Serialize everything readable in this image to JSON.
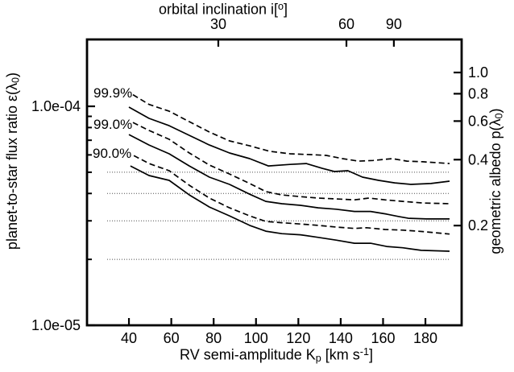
{
  "figure": {
    "background": "#ffffff",
    "line_color": "#000000",
    "reference_line_color": "#4a4a4a"
  },
  "axis_titles": {
    "top_parts": [
      "orbital inclination i[",
      "o",
      "]"
    ],
    "x_parts": [
      "RV semi-amplitude K",
      "p",
      " [km s",
      "-1",
      "]"
    ],
    "y_parts": [
      "planet-to-star flux ratio ε(λ",
      "0",
      ")"
    ],
    "y2_parts": [
      "geometric albedo p(λ",
      "0",
      ")"
    ]
  },
  "curve_labels": [
    "99.9%",
    "99.0%",
    "90.0%"
  ],
  "chart_data": {
    "type": "line",
    "title": "",
    "xlabel": "RV semi-amplitude Kp [km s-1]",
    "ylabel": "planet-to-star flux ratio epsilon(lambda0)",
    "y2label": "geometric albedo p(lambda0)",
    "top_label": "orbital inclination i[deg]",
    "grid": false,
    "legend_position": "inline-left",
    "x_axis": {
      "min": 20.2,
      "max": 197.1,
      "ticks": [
        40,
        60,
        80,
        100,
        120,
        140,
        160,
        180
      ],
      "tick_labels": [
        "40",
        "60",
        "80",
        "100",
        "120",
        "140",
        "160",
        "180"
      ]
    },
    "top_axis": {
      "note": "inclination ticks mapped to Kp = Ktrue*sin(i), Ktrue ~165 km/s",
      "ticks": [
        {
          "label": "30",
          "k": 82.2
        },
        {
          "label": "60",
          "k": 142.7
        },
        {
          "label": "90",
          "k": 165.1
        }
      ]
    },
    "y_axis": {
      "scale": "log",
      "min": 1e-05,
      "max": 0.000202,
      "major_ticks": [
        {
          "label": "1.0e-04",
          "v": 0.0001
        },
        {
          "label": "1.0e-05",
          "v": 1e-05
        }
      ],
      "minor_ticks": [
        2e-05,
        3e-05,
        4e-05,
        5e-05,
        6e-05,
        7e-05,
        8e-05,
        9e-05
      ]
    },
    "y2_axis": {
      "scale_to_flux": 0.0001427,
      "ticks": [
        {
          "label": "1.0",
          "p": 1.0
        },
        {
          "label": "0.8",
          "p": 0.8
        },
        {
          "label": "0.6",
          "p": 0.6
        },
        {
          "label": "0.4",
          "p": 0.4
        },
        {
          "label": "0.2",
          "p": 0.2
        }
      ]
    },
    "reference_lines": {
      "style": "dotted",
      "k_start": 29.7,
      "k_end": 191.4,
      "values": [
        5e-05,
        4e-05,
        3e-05,
        2e-05
      ]
    },
    "annotations": [
      {
        "text": "99.9%",
        "k": 23.5,
        "v": 0.000114
      },
      {
        "text": "99.0%",
        "k": 23.5,
        "v": 8.2e-05
      },
      {
        "text": "90.0%",
        "k": 23.2,
        "v": 6e-05
      }
    ],
    "series": [
      {
        "name": "99.9-dashed",
        "style": "dashed",
        "points": [
          [
            41.9,
            0.000113
          ],
          [
            49.5,
            0.000102
          ],
          [
            59.0,
            9.5e-05
          ],
          [
            68.5,
            8.51e-05
          ],
          [
            78.0,
            7.63e-05
          ],
          [
            87.5,
            6.95e-05
          ],
          [
            97.0,
            6.6e-05
          ],
          [
            106.5,
            6.23e-05
          ],
          [
            116.1,
            6.07e-05
          ],
          [
            125.6,
            6.02e-05
          ],
          [
            133.2,
            5.97e-05
          ],
          [
            140.8,
            5.77e-05
          ],
          [
            148.4,
            5.62e-05
          ],
          [
            155.3,
            5.66e-05
          ],
          [
            164.4,
            5.77e-05
          ],
          [
            171.2,
            5.62e-05
          ],
          [
            178.8,
            5.58e-05
          ],
          [
            191.4,
            5.48e-05
          ]
        ]
      },
      {
        "name": "99.9-solid",
        "style": "solid",
        "points": [
          [
            40.0,
            9.92e-05
          ],
          [
            49.5,
            8.81e-05
          ],
          [
            59.0,
            8.16e-05
          ],
          [
            68.5,
            7.37e-05
          ],
          [
            78.0,
            6.66e-05
          ],
          [
            87.5,
            6.12e-05
          ],
          [
            97.0,
            5.77e-05
          ],
          [
            105.8,
            5.34e-05
          ],
          [
            116.1,
            5.43e-05
          ],
          [
            123.7,
            5.48e-05
          ],
          [
            131.3,
            5.21e-05
          ],
          [
            137.0,
            5.04e-05
          ],
          [
            143.4,
            5.08e-05
          ],
          [
            150.3,
            4.75e-05
          ],
          [
            157.9,
            4.59e-05
          ],
          [
            165.5,
            4.47e-05
          ],
          [
            173.1,
            4.4e-05
          ],
          [
            182.6,
            4.44e-05
          ],
          [
            191.4,
            4.55e-05
          ]
        ]
      },
      {
        "name": "99.0-dashed",
        "style": "dashed",
        "points": [
          [
            41.9,
            8.44e-05
          ],
          [
            49.5,
            7.76e-05
          ],
          [
            59.0,
            7.07e-05
          ],
          [
            68.5,
            6.12e-05
          ],
          [
            78.0,
            5.39e-05
          ],
          [
            87.5,
            4.91e-05
          ],
          [
            97.0,
            4.44e-05
          ],
          [
            104.6,
            4.08e-05
          ],
          [
            112.2,
            3.94e-05
          ],
          [
            121.0,
            3.87e-05
          ],
          [
            129.4,
            3.81e-05
          ],
          [
            137.0,
            3.78e-05
          ],
          [
            146.5,
            3.74e-05
          ],
          [
            153.3,
            3.81e-05
          ],
          [
            160.9,
            3.74e-05
          ],
          [
            169.3,
            3.68e-05
          ],
          [
            178.8,
            3.62e-05
          ],
          [
            191.4,
            3.59e-05
          ]
        ]
      },
      {
        "name": "99.0-solid",
        "style": "solid",
        "points": [
          [
            40.0,
            7.43e-05
          ],
          [
            49.5,
            6.66e-05
          ],
          [
            59.0,
            6.07e-05
          ],
          [
            68.5,
            5.34e-05
          ],
          [
            78.0,
            4.75e-05
          ],
          [
            87.5,
            4.4e-05
          ],
          [
            97.0,
            3.97e-05
          ],
          [
            104.6,
            3.68e-05
          ],
          [
            112.2,
            3.59e-05
          ],
          [
            121.0,
            3.53e-05
          ],
          [
            129.4,
            3.44e-05
          ],
          [
            137.8,
            3.39e-05
          ],
          [
            146.5,
            3.31e-05
          ],
          [
            154.1,
            3.31e-05
          ],
          [
            161.7,
            3.22e-05
          ],
          [
            167.4,
            3.14e-05
          ],
          [
            172.0,
            3.08e-05
          ],
          [
            180.7,
            3.06e-05
          ],
          [
            191.4,
            3.06e-05
          ]
        ]
      },
      {
        "name": "90.0-dashed",
        "style": "dashed",
        "points": [
          [
            42.3,
            5.96e-05
          ],
          [
            49.5,
            5.48e-05
          ],
          [
            59.0,
            5.08e-05
          ],
          [
            68.5,
            4.36e-05
          ],
          [
            78.0,
            3.81e-05
          ],
          [
            87.5,
            3.44e-05
          ],
          [
            97.0,
            3.16e-05
          ],
          [
            104.6,
            2.98e-05
          ],
          [
            112.2,
            2.94e-05
          ],
          [
            121.0,
            2.9e-05
          ],
          [
            129.4,
            2.86e-05
          ],
          [
            137.8,
            2.81e-05
          ],
          [
            146.5,
            2.77e-05
          ],
          [
            152.2,
            2.79e-05
          ],
          [
            160.9,
            2.74e-05
          ],
          [
            169.3,
            2.72e-05
          ],
          [
            178.8,
            2.68e-05
          ],
          [
            191.4,
            2.61e-05
          ]
        ]
      },
      {
        "name": "90.0-solid",
        "style": "solid",
        "points": [
          [
            40.7,
            5.34e-05
          ],
          [
            49.5,
            4.83e-05
          ],
          [
            59.0,
            4.59e-05
          ],
          [
            68.5,
            3.94e-05
          ],
          [
            78.0,
            3.47e-05
          ],
          [
            87.5,
            3.16e-05
          ],
          [
            97.0,
            2.86e-05
          ],
          [
            104.6,
            2.69e-05
          ],
          [
            112.2,
            2.62e-05
          ],
          [
            121.0,
            2.59e-05
          ],
          [
            129.4,
            2.52e-05
          ],
          [
            137.8,
            2.45e-05
          ],
          [
            146.5,
            2.37e-05
          ],
          [
            154.1,
            2.37e-05
          ],
          [
            161.7,
            2.29e-05
          ],
          [
            169.3,
            2.26e-05
          ],
          [
            178.0,
            2.2e-05
          ],
          [
            191.4,
            2.18e-05
          ]
        ]
      }
    ]
  }
}
